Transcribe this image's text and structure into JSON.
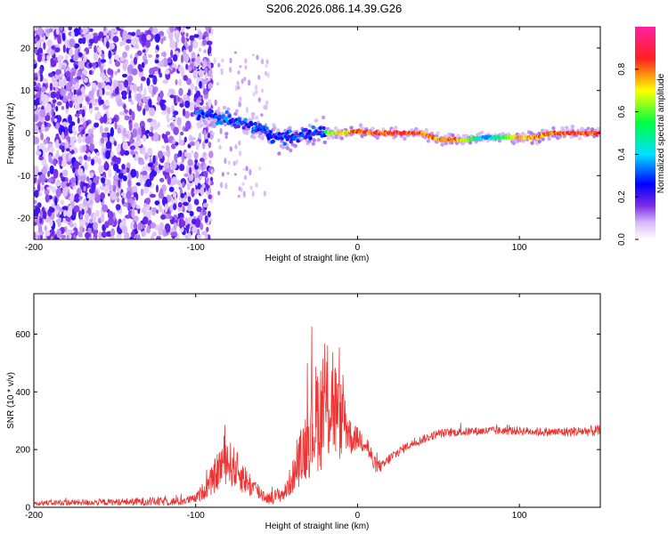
{
  "title": "S206.2026.086.14.39.G26",
  "chart_data": [
    {
      "type": "heatmap",
      "xlabel": "Height of straight line (km)",
      "ylabel": "Frequency (Hz)",
      "xlim": [
        -200,
        150
      ],
      "ylim": [
        -25,
        25
      ],
      "xticks": [
        -200,
        -100,
        0,
        100
      ],
      "yticks": [
        -20,
        -10,
        0,
        10,
        20
      ],
      "colorbar": {
        "label": "Normalized spectral amplitude",
        "range": [
          0,
          1
        ],
        "ticks": [
          "0.0",
          "0.2",
          "0.4",
          "0.6",
          "0.8"
        ]
      },
      "ridge": {
        "x": [
          -100,
          -90,
          -80,
          -70,
          -60,
          -50,
          -40,
          -30,
          -20,
          -10,
          0,
          10,
          20,
          30,
          40,
          50,
          60,
          70,
          80,
          90,
          100,
          110,
          120,
          130,
          140,
          150
        ],
        "freq": [
          5,
          4,
          3,
          2,
          1,
          -1,
          -1,
          0,
          0,
          0,
          0.5,
          0,
          0,
          0,
          0,
          -1.5,
          -1.5,
          -1.5,
          -1,
          -1,
          -1,
          -1,
          0,
          0,
          0,
          0
        ],
        "amplitude": [
          0.3,
          0.25,
          0.25,
          0.3,
          0.3,
          0.2,
          0.2,
          0.3,
          0.6,
          0.75,
          0.85,
          0.85,
          0.85,
          0.85,
          0.85,
          0.8,
          0.85,
          0.6,
          0.35,
          0.6,
          0.8,
          0.8,
          0.85,
          0.85,
          0.85,
          0.85
        ]
      }
    },
    {
      "type": "line",
      "xlabel": "Height of straight line (km)",
      "ylabel": "SNR (10 * v/v)",
      "xlim": [
        -200,
        150
      ],
      "ylim": [
        0,
        740
      ],
      "xticks": [
        -200,
        -100,
        0,
        100
      ],
      "yticks": [
        0,
        200,
        400,
        600
      ],
      "color": "#ee3333",
      "envelope": {
        "x": [
          -200,
          -150,
          -130,
          -110,
          -100,
          -90,
          -82,
          -75,
          -65,
          -55,
          -45,
          -38,
          -30,
          -25,
          -20,
          -16,
          -12,
          -8,
          -4,
          0,
          5,
          10,
          15,
          20,
          30,
          40,
          50,
          60,
          80,
          100,
          120,
          150
        ],
        "mean": [
          15,
          18,
          20,
          20,
          30,
          90,
          170,
          130,
          70,
          30,
          50,
          130,
          250,
          320,
          330,
          400,
          300,
          310,
          240,
          240,
          230,
          150,
          140,
          170,
          210,
          235,
          255,
          260,
          265,
          265,
          260,
          265
        ],
        "noise": [
          10,
          12,
          15,
          15,
          15,
          50,
          90,
          70,
          40,
          20,
          30,
          70,
          150,
          200,
          200,
          250,
          150,
          120,
          60,
          40,
          50,
          30,
          20,
          20,
          15,
          15,
          15,
          15,
          15,
          15,
          15,
          20
        ]
      }
    }
  ]
}
